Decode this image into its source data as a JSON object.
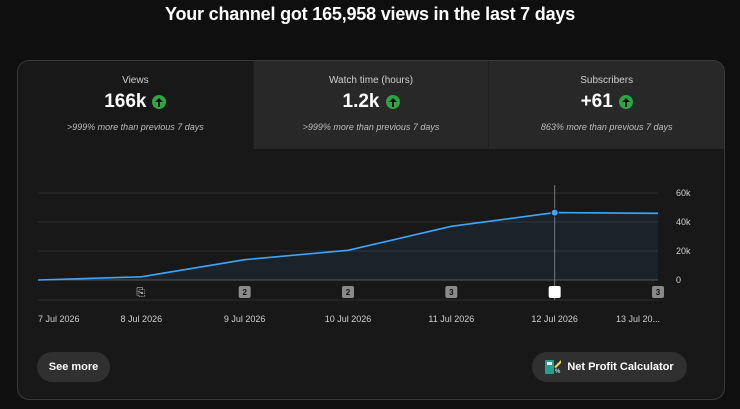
{
  "headline": "Your channel got 165,958 views in the last 7 days",
  "tabs": [
    {
      "label": "Views",
      "value": "166k",
      "change": ">999% more than previous 7 days"
    },
    {
      "label": "Watch time (hours)",
      "value": "1.2k",
      "change": ">999% more than previous 7 days"
    },
    {
      "label": "Subscribers",
      "value": "+61",
      "change": "863% more than previous 7 days"
    }
  ],
  "chart_data": {
    "type": "area",
    "x": [
      "7 Jul 2026",
      "8 Jul 2026",
      "9 Jul 2026",
      "10 Jul 2026",
      "11 Jul 2026",
      "12 Jul 2026",
      "13 Jul 20..."
    ],
    "series": [
      {
        "values": [
          0,
          2200,
          14000,
          20500,
          37000,
          46500,
          46000
        ]
      }
    ],
    "y_ticks": [
      "60k",
      "40k",
      "20k",
      "0"
    ],
    "ylim": [
      0,
      60000
    ],
    "grid": true,
    "markers": [
      "upload-icon",
      "2",
      "2",
      "3",
      "",
      "3"
    ],
    "highlight_index": 5,
    "line_color": "#3ea6ff"
  },
  "buttons": {
    "see_more": "See more",
    "net_profit": "Net Profit Calculator"
  },
  "colors": {
    "accent_up": "#2ba640",
    "background": "#0f0f0f",
    "card": "#181818",
    "tab_inactive": "#282828"
  }
}
